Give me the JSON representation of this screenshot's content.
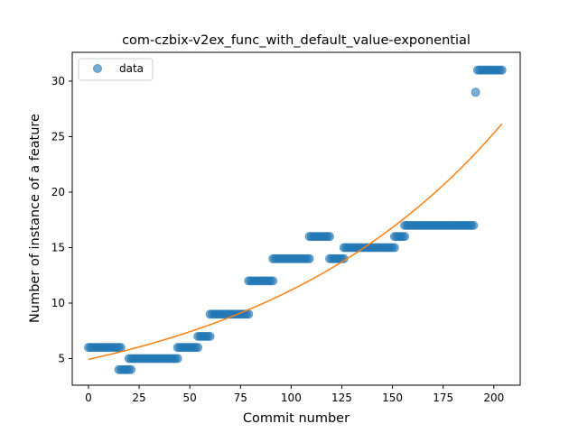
{
  "chart_data": {
    "type": "scatter",
    "title": "com-czbix-v2ex_func_with_default_value-exponential",
    "xlabel": "Commit number",
    "ylabel": "Number of instance of a feature",
    "xlim": [
      -8,
      213
    ],
    "ylim": [
      2.6,
      32.6
    ],
    "xticks": [
      0,
      25,
      50,
      75,
      100,
      125,
      150,
      175,
      200
    ],
    "yticks": [
      5,
      10,
      15,
      20,
      25,
      30
    ],
    "legend": {
      "position": "upper-left",
      "entries": [
        "data"
      ]
    },
    "colors": {
      "points": "#1f77b4",
      "fit": "#ff7f0e"
    },
    "series": [
      {
        "name": "data",
        "kind": "points",
        "segments": [
          {
            "x_start": 0,
            "x_end": 16,
            "y": 6
          },
          {
            "x_start": 15,
            "x_end": 21,
            "y": 4
          },
          {
            "x_start": 20,
            "x_end": 44,
            "y": 5
          },
          {
            "x_start": 44,
            "x_end": 54,
            "y": 6
          },
          {
            "x_start": 54,
            "x_end": 60,
            "y": 7
          },
          {
            "x_start": 60,
            "x_end": 79,
            "y": 9
          },
          {
            "x_start": 79,
            "x_end": 91,
            "y": 12
          },
          {
            "x_start": 91,
            "x_end": 109,
            "y": 14
          },
          {
            "x_start": 109,
            "x_end": 119,
            "y": 16
          },
          {
            "x_start": 119,
            "x_end": 126,
            "y": 14
          },
          {
            "x_start": 126,
            "x_end": 151,
            "y": 15
          },
          {
            "x_start": 151,
            "x_end": 156,
            "y": 16
          },
          {
            "x_start": 156,
            "x_end": 190,
            "y": 17
          },
          {
            "x_start": 191,
            "x_end": 191,
            "y": 29
          },
          {
            "x_start": 192,
            "x_end": 204,
            "y": 31
          }
        ]
      },
      {
        "kind": "fit",
        "a": 4.93,
        "b": 0.00818,
        "x_start": 0,
        "x_end": 204
      }
    ]
  }
}
